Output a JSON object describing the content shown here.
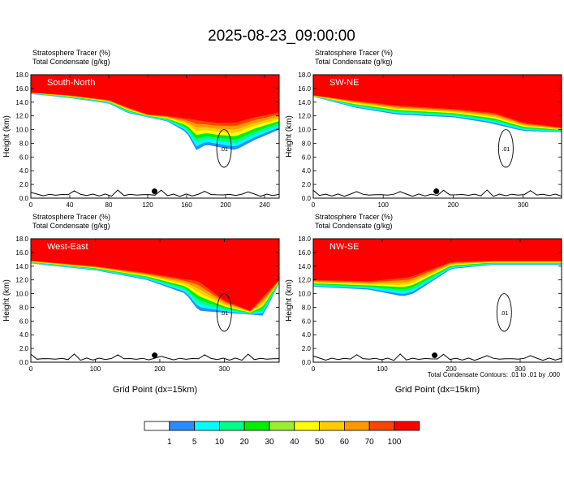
{
  "figure": {
    "title": "2025-08-23_09:00:00",
    "footnote": "Total Condensate Contours: .01 to .01 by .000"
  },
  "colorbar": {
    "colors": [
      "#ffffff",
      "#2b8cff",
      "#00ffff",
      "#00ff88",
      "#00ee00",
      "#99ee33",
      "#ffff00",
      "#ffcc00",
      "#ff9900",
      "#ff4400",
      "#ff0000"
    ],
    "tick_labels": [
      "1",
      "5",
      "10",
      "20",
      "30",
      "40",
      "50",
      "60",
      "70",
      "100"
    ]
  },
  "chart_data": [
    {
      "type": "contour",
      "panel": "South-North",
      "header_line1": "Stratosphere Tracer   (%)",
      "header_line2": "Total Condensate   (g/kg)",
      "xlabel": "",
      "ylabel": "Height (km)",
      "xlim": [
        0,
        255
      ],
      "ylim": [
        0,
        18
      ],
      "xticks": [
        0,
        40,
        80,
        120,
        160,
        200,
        240
      ],
      "yticks": [
        0.0,
        2.0,
        4.0,
        6.0,
        8.0,
        10.0,
        12.0,
        14.0,
        16.0,
        18.0
      ],
      "tracer_100_base_km": [
        [
          0,
          15.4
        ],
        [
          40,
          15.0
        ],
        [
          80,
          14.3
        ],
        [
          100,
          13.2
        ],
        [
          120,
          12.2
        ],
        [
          140,
          12.0
        ],
        [
          165,
          11.5
        ],
        [
          190,
          11.0
        ],
        [
          210,
          11.0
        ],
        [
          230,
          11.8
        ],
        [
          255,
          12.5
        ]
      ],
      "tracer_1_base_km": [
        [
          0,
          15.2
        ],
        [
          40,
          14.6
        ],
        [
          80,
          13.8
        ],
        [
          100,
          12.4
        ],
        [
          140,
          11.2
        ],
        [
          160,
          9.6
        ],
        [
          170,
          7.0
        ],
        [
          180,
          7.8
        ],
        [
          210,
          7.0
        ],
        [
          230,
          8.5
        ],
        [
          255,
          10.0
        ]
      ],
      "condensate_contour_label": ".01",
      "marker": {
        "x": 127,
        "y": 1.0
      }
    },
    {
      "type": "contour",
      "panel": "SW-NE",
      "header_line1": "Stratosphere Tracer   (%)",
      "header_line2": "Total Condensate   (g/kg)",
      "xlabel": "",
      "ylabel": "Height (km)",
      "xlim": [
        0,
        355
      ],
      "ylim": [
        0,
        18
      ],
      "xticks": [
        0,
        100,
        200,
        300
      ],
      "yticks": [
        0.0,
        2.0,
        4.0,
        6.0,
        8.0,
        10.0,
        12.0,
        14.0,
        16.0,
        18.0
      ],
      "tracer_100_base_km": [
        [
          0,
          15.0
        ],
        [
          60,
          14.2
        ],
        [
          120,
          13.5
        ],
        [
          200,
          13.0
        ],
        [
          260,
          12.4
        ],
        [
          300,
          11.0
        ],
        [
          355,
          10.3
        ]
      ],
      "tracer_1_base_km": [
        [
          0,
          14.8
        ],
        [
          60,
          13.2
        ],
        [
          120,
          12.2
        ],
        [
          200,
          11.8
        ],
        [
          250,
          11.0
        ],
        [
          300,
          9.8
        ],
        [
          355,
          9.6
        ]
      ],
      "condensate_contour_label": ".01",
      "marker": {
        "x": 176,
        "y": 1.0
      }
    },
    {
      "type": "contour",
      "panel": "West-East",
      "header_line1": "Stratosphere Tracer   (%)",
      "header_line2": "Total Condensate   (g/kg)",
      "xlabel": "Grid Point (dx=15km)",
      "ylabel": "Height (km)",
      "xlim": [
        0,
        385
      ],
      "ylim": [
        0,
        18
      ],
      "xticks": [
        0,
        100,
        200,
        300
      ],
      "yticks": [
        0.0,
        2.0,
        4.0,
        6.0,
        8.0,
        10.0,
        12.0,
        14.0,
        16.0,
        18.0
      ],
      "tracer_100_base_km": [
        [
          0,
          14.8
        ],
        [
          100,
          14.0
        ],
        [
          180,
          13.0
        ],
        [
          260,
          11.8
        ],
        [
          300,
          9.0
        ],
        [
          340,
          7.5
        ],
        [
          385,
          12.0
        ]
      ],
      "tracer_1_base_km": [
        [
          0,
          14.4
        ],
        [
          100,
          13.4
        ],
        [
          180,
          12.0
        ],
        [
          240,
          10.0
        ],
        [
          260,
          7.5
        ],
        [
          360,
          6.8
        ],
        [
          385,
          11.5
        ]
      ],
      "condensate_contour_label": ".01",
      "marker": {
        "x": 192,
        "y": 1.0
      }
    },
    {
      "type": "contour",
      "panel": "NW-SE",
      "header_line1": "Stratosphere Tracer   (%)",
      "header_line2": "Total Condensate   (g/kg)",
      "xlabel": "Grid Point (dx=15km)",
      "ylabel": "Height (km)",
      "xlim": [
        0,
        360
      ],
      "ylim": [
        0,
        18
      ],
      "xticks": [
        0,
        100,
        200,
        300
      ],
      "yticks": [
        0.0,
        2.0,
        4.0,
        6.0,
        8.0,
        10.0,
        12.0,
        14.0,
        16.0,
        18.0
      ],
      "tracer_100_base_km": [
        [
          0,
          12.0
        ],
        [
          80,
          11.8
        ],
        [
          140,
          12.4
        ],
        [
          200,
          14.6
        ],
        [
          260,
          14.8
        ],
        [
          360,
          14.8
        ]
      ],
      "tracer_1_base_km": [
        [
          0,
          11.0
        ],
        [
          80,
          10.6
        ],
        [
          130,
          9.6
        ],
        [
          145,
          10.0
        ],
        [
          200,
          13.6
        ],
        [
          260,
          14.2
        ],
        [
          360,
          14.2
        ]
      ],
      "condensate_contour_label": ".01",
      "marker": {
        "x": 176,
        "y": 1.0
      }
    }
  ]
}
